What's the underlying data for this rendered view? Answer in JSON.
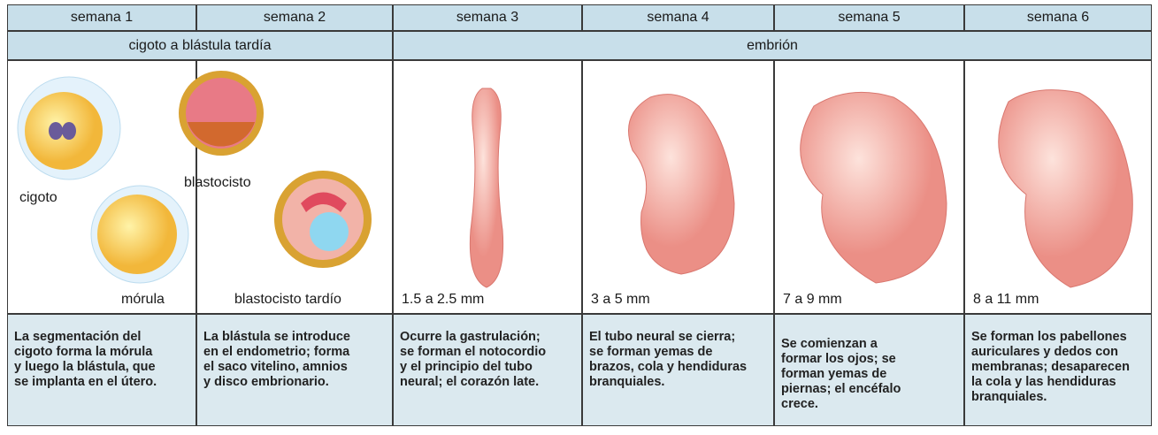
{
  "header": {
    "weeks": [
      "semana 1",
      "semana 2",
      "semana 3",
      "semana 4",
      "semana 5",
      "semana 6"
    ],
    "stages": [
      "cigoto a blástula tardía",
      "embrión"
    ]
  },
  "images": {
    "labels": [
      "cigoto",
      "blastocisto",
      "mórula",
      "blastocisto tardío"
    ],
    "sizes": [
      "1.5 a 2.5 mm",
      "3 a 5 mm",
      "7 a 9 mm",
      "8 a 11 mm"
    ]
  },
  "descriptions": [
    [
      "La segmentación del",
      "cigoto forma la mórula",
      "y luego la blástula, que",
      "se implanta en el útero."
    ],
    [
      "La blástula se introduce",
      "en el endometrio; forma",
      "el saco vitelino, amnios",
      "y disco embrionario."
    ],
    [
      "Ocurre la gastrulación;",
      "se forman el notocordio",
      "y el principio del tubo",
      "neural; el corazón late."
    ],
    [
      "El tubo neural se cierra;",
      "se forman yemas de",
      "brazos, cola y hendiduras",
      "branquiales."
    ],
    [
      "Se comienzan a",
      "formar los ojos; se",
      "forman yemas de",
      "piernas; el encéfalo",
      "crece."
    ],
    [
      "Se forman los pabellones",
      "auriculares y dedos con",
      "membranas; desaparecen",
      "la cola y las hendiduras",
      "branquiales."
    ]
  ]
}
